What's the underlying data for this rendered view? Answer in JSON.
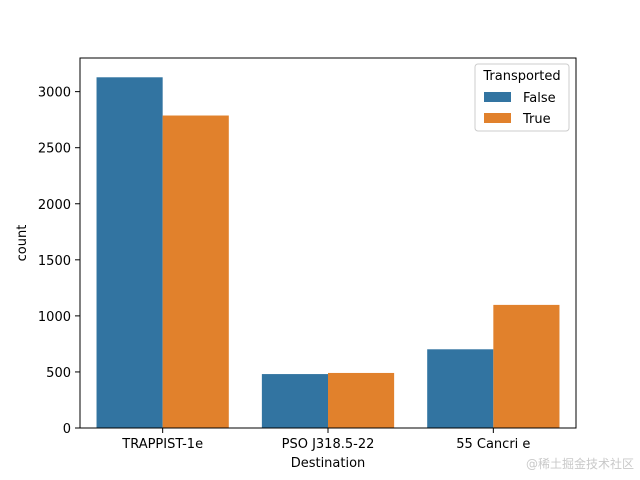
{
  "chart_data": {
    "type": "bar",
    "title": "",
    "xlabel": "Destination",
    "ylabel": "count",
    "categories": [
      "TRAPPIST-1e",
      "PSO J318.5-22",
      "55 Cancri e"
    ],
    "series": [
      {
        "name": "False",
        "values": [
          3128,
          481,
          702
        ],
        "color": "#3274a1"
      },
      {
        "name": "True",
        "values": [
          2787,
          491,
          1098
        ],
        "color": "#e1812c"
      }
    ],
    "ylim": [
      0,
      3300
    ],
    "yticks": [
      0,
      500,
      1000,
      1500,
      2000,
      2500,
      3000
    ],
    "legend": {
      "title": "Transported",
      "placement": "top-right"
    },
    "grid": false
  },
  "watermark": "@稀土掘金技术社区"
}
